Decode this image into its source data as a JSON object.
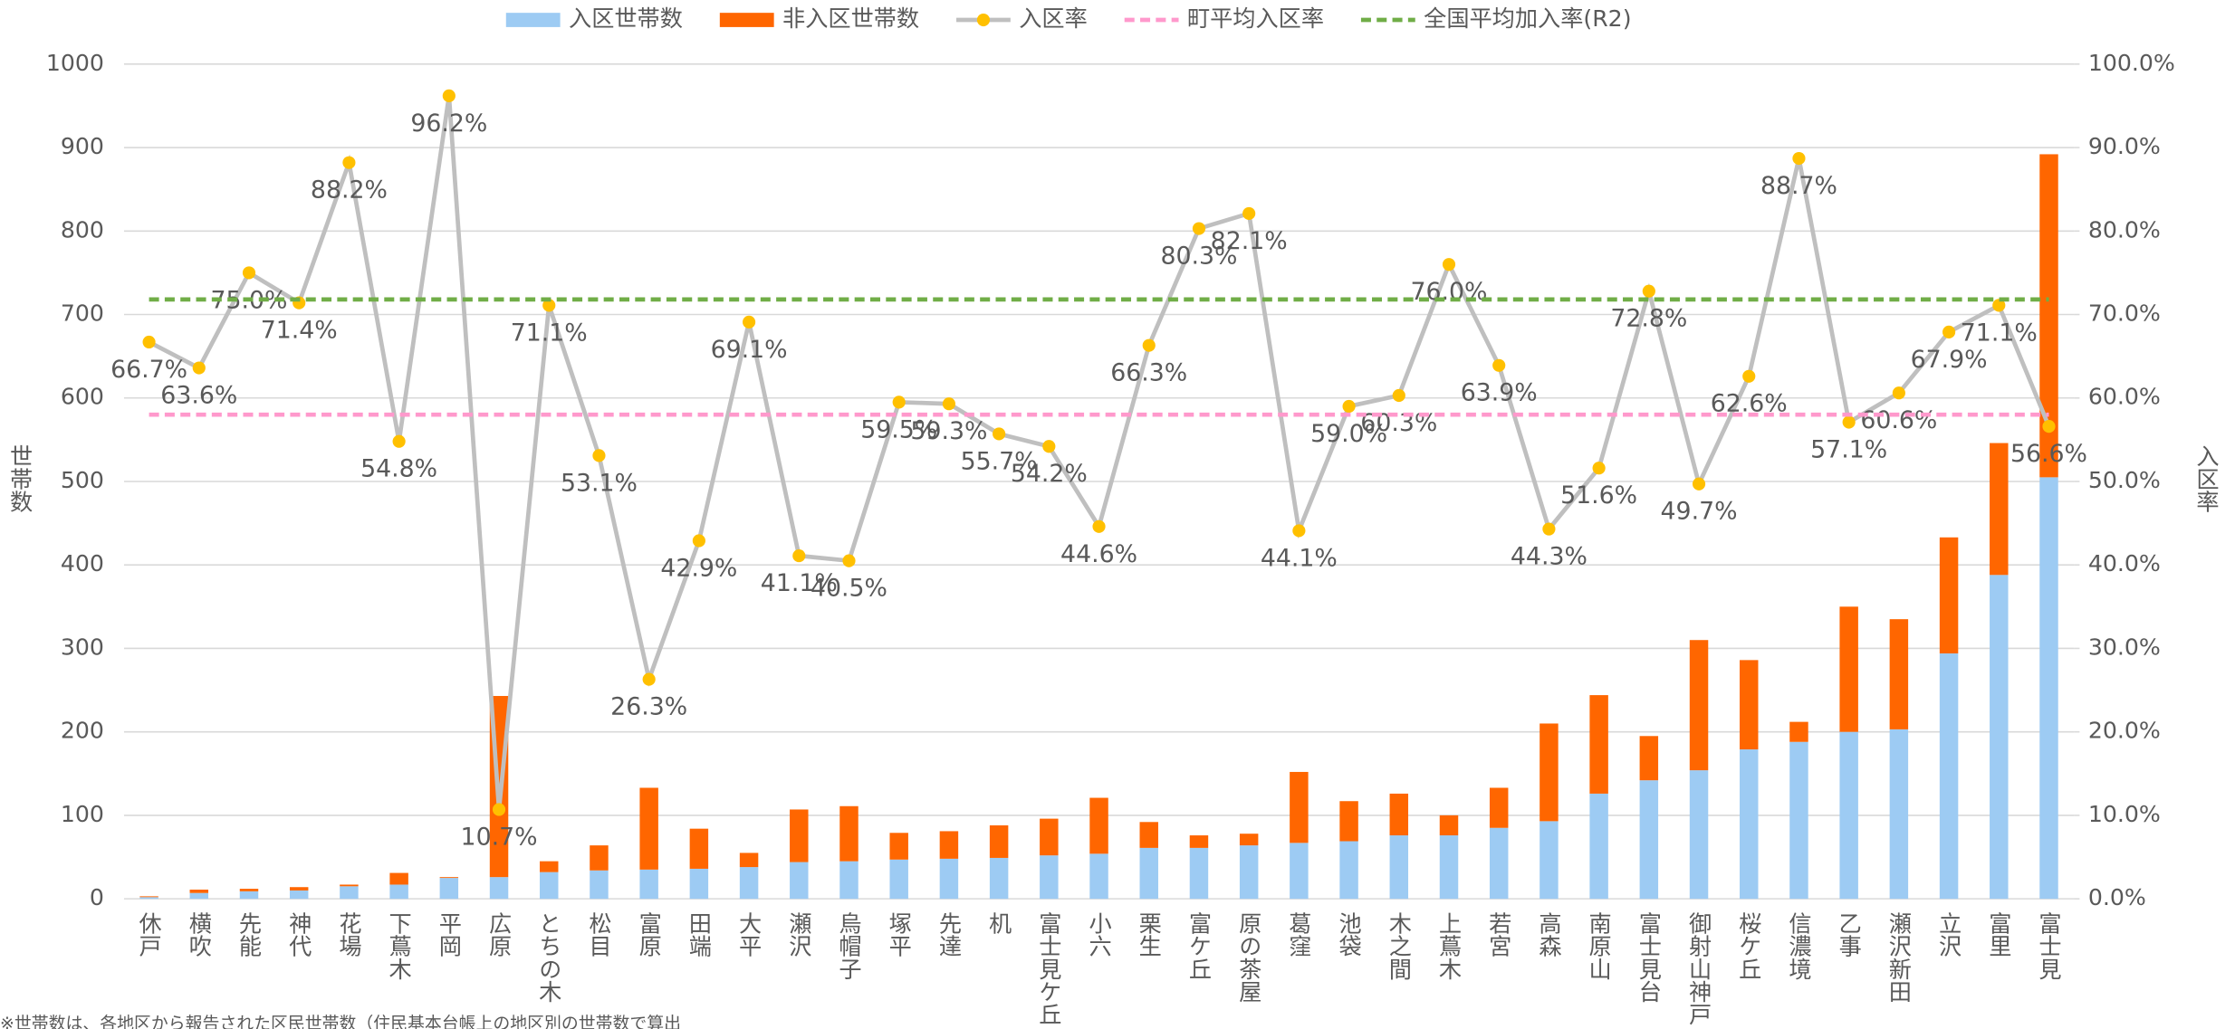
{
  "chart_data": {
    "type": "bar",
    "ylabel": "世帯数",
    "y2label": "入区率",
    "note": "※世帯数は、各地区から報告された区民世帯数（住民基本台帳上の地区別の世帯数で算出",
    "categories": [
      "休戸",
      "横吹",
      "先能",
      "神代",
      "花場",
      "下蔦木",
      "平岡",
      "広原",
      "とちの木",
      "松目",
      "富原",
      "田端",
      "大平",
      "瀬沢",
      "烏帽子",
      "塚平",
      "先達",
      "机",
      "富士見ケ丘",
      "小六",
      "栗生",
      "富ケ丘",
      "原の茶屋",
      "葛窪",
      "池袋",
      "木之間",
      "上蔦木",
      "若宮",
      "高森",
      "南原山",
      "富士見台",
      "御射山神戸",
      "桜ケ丘",
      "信濃境",
      "乙事",
      "瀬沢新田",
      "立沢",
      "富里",
      "富士見"
    ],
    "ylim": [
      0,
      1000
    ],
    "yticks": [
      0,
      100,
      200,
      300,
      400,
      500,
      600,
      700,
      800,
      900,
      1000
    ],
    "y2lim": [
      0,
      100
    ],
    "y2ticks": [
      {
        "value": 0,
        "label": "0.0%"
      },
      {
        "value": 10,
        "label": "10.0%"
      },
      {
        "value": 20,
        "label": "20.0%"
      },
      {
        "value": 30,
        "label": "30.0%"
      },
      {
        "value": 40,
        "label": "40.0%"
      },
      {
        "value": 50,
        "label": "50.0%"
      },
      {
        "value": 60,
        "label": "60.0%"
      },
      {
        "value": 70,
        "label": "70.0%"
      },
      {
        "value": 80,
        "label": "80.0%"
      },
      {
        "value": 90,
        "label": "90.0%"
      },
      {
        "value": 100,
        "label": "100.0%"
      }
    ],
    "grid": true,
    "legend": "top",
    "series": [
      {
        "name": "入区世帯数",
        "type": "bar",
        "color": "#9dcbf3",
        "values": [
          2,
          7,
          9,
          10,
          15,
          17,
          25,
          26,
          32,
          34,
          35,
          36,
          38,
          44,
          45,
          47,
          48,
          49,
          52,
          54,
          61,
          61,
          64,
          67,
          69,
          76,
          76,
          85,
          93,
          126,
          142,
          154,
          179,
          188,
          200,
          203,
          294,
          388,
          505
        ]
      },
      {
        "name": "非入区世帯数",
        "type": "bar",
        "color": "#ff6600",
        "values": [
          1,
          4,
          3,
          4,
          2,
          14,
          1,
          217,
          13,
          30,
          98,
          48,
          17,
          63,
          66,
          32,
          33,
          39,
          44,
          67,
          31,
          15,
          14,
          85,
          48,
          50,
          24,
          48,
          117,
          118,
          53,
          156,
          107,
          24,
          150,
          132,
          139,
          158,
          387
        ]
      },
      {
        "name": "入区率",
        "type": "line",
        "axis": "y2",
        "color": "#bfbfbf",
        "marker_color": "#ffc000",
        "values": [
          66.7,
          63.6,
          75.0,
          71.4,
          88.2,
          54.8,
          96.2,
          10.7,
          71.1,
          53.1,
          26.3,
          42.9,
          69.1,
          41.1,
          40.5,
          59.5,
          59.3,
          55.7,
          54.2,
          44.6,
          66.3,
          80.3,
          82.1,
          44.1,
          59.0,
          60.3,
          76.0,
          63.9,
          44.3,
          51.6,
          72.8,
          49.7,
          62.6,
          88.7,
          57.1,
          60.6,
          67.9,
          71.1,
          56.6
        ],
        "value_labels": [
          "66.7%",
          "63.6%",
          "75.0%",
          "71.4%",
          "88.2%",
          "54.8%",
          "96.2%",
          "10.7%",
          "71.1%",
          "53.1%",
          "26.3%",
          "42.9%",
          "69.1%",
          "41.1%",
          "40.5%",
          "59.5%",
          "59.3%",
          "55.7%",
          "54.2%",
          "44.6%",
          "66.3%",
          "80.3%",
          "82.1%",
          "44.1%",
          "59.0%",
          "60.3%",
          "76.0%",
          "63.9%",
          "44.3%",
          "51.6%",
          "72.8%",
          "49.7%",
          "62.6%",
          "88.7%",
          "57.1%",
          "60.6%",
          "67.9%",
          "71.1%",
          "56.6%"
        ]
      },
      {
        "name": "町平均入区率",
        "type": "hline",
        "axis": "y2",
        "color": "#ff99cc",
        "value": 58.0
      },
      {
        "name": "全国平均加入率(R2)",
        "type": "hline",
        "axis": "y2",
        "color": "#70ad47",
        "value": 71.8
      }
    ]
  }
}
